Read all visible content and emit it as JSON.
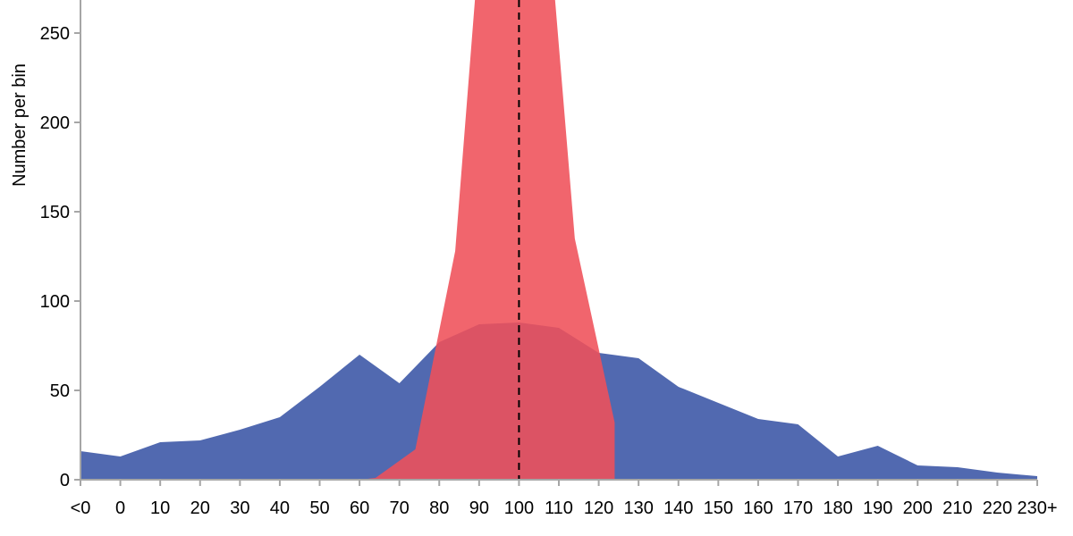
{
  "chart_data": {
    "type": "area",
    "xlabel": "",
    "ylabel": "Number per bin",
    "ylim": [
      0,
      270
    ],
    "yticks": [
      0,
      50,
      100,
      150,
      200,
      250
    ],
    "x_tick_labels": [
      "<0",
      "0",
      "10",
      "20",
      "30",
      "40",
      "50",
      "60",
      "70",
      "80",
      "90",
      "100",
      "110",
      "120",
      "130",
      "140",
      "150",
      "160",
      "170",
      "180",
      "190",
      "200",
      "210",
      "220",
      "230+"
    ],
    "reference_line": {
      "x": 100,
      "style": "dashed"
    },
    "series": [
      {
        "color": "#5169b0",
        "points": [
          [
            -10,
            16
          ],
          [
            0,
            13
          ],
          [
            10,
            21
          ],
          [
            20,
            22
          ],
          [
            30,
            28
          ],
          [
            40,
            35
          ],
          [
            50,
            52
          ],
          [
            60,
            70
          ],
          [
            70,
            54
          ],
          [
            80,
            77
          ],
          [
            90,
            87
          ],
          [
            100,
            88
          ],
          [
            110,
            85
          ],
          [
            120,
            71
          ],
          [
            130,
            68
          ],
          [
            140,
            52
          ],
          [
            150,
            43
          ],
          [
            160,
            34
          ],
          [
            170,
            31
          ],
          [
            180,
            13
          ],
          [
            190,
            19
          ],
          [
            200,
            8
          ],
          [
            210,
            7
          ],
          [
            220,
            4
          ],
          [
            230,
            2
          ]
        ]
      },
      {
        "color": "#ef5059",
        "points": [
          [
            60,
            0
          ],
          [
            64,
            1
          ],
          [
            74,
            17
          ],
          [
            84,
            128
          ],
          [
            89,
            270
          ],
          [
            109,
            270
          ],
          [
            114,
            135
          ],
          [
            124,
            32
          ],
          [
            124,
            0
          ]
        ]
      }
    ]
  }
}
